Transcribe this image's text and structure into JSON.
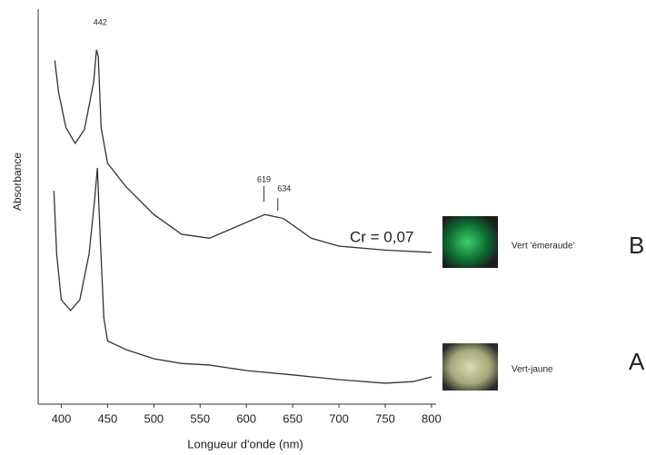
{
  "chart_data": {
    "type": "line",
    "xlabel": "Longueur d'onde (nm)",
    "ylabel": "Absorbance",
    "xlim": [
      375,
      805
    ],
    "xticks": [
      400,
      450,
      500,
      550,
      600,
      650,
      700,
      750,
      800
    ],
    "ylim": [
      0,
      100
    ],
    "peak_labels": [
      442,
      619,
      634
    ],
    "annotation": "Cr = 0,07",
    "series": [
      {
        "name": "B",
        "sample": "Vert 'émeraude'",
        "color": "#333333",
        "x": [
          393,
          397,
          405,
          415,
          425,
          435,
          438,
          440,
          443,
          450,
          470,
          500,
          530,
          560,
          590,
          620,
          640,
          670,
          700,
          750,
          800
        ],
        "values": [
          87,
          79,
          70,
          66,
          69.5,
          81.6,
          89.7,
          88,
          70,
          61,
          55,
          48,
          43,
          42,
          45,
          48,
          47,
          42,
          40,
          39,
          38.4
        ]
      },
      {
        "name": "A",
        "sample": "Vert-jaune",
        "color": "#333333",
        "x": [
          392,
          395,
          400,
          410,
          420,
          430,
          436,
          439,
          442,
          446,
          450,
          470,
          500,
          530,
          560,
          600,
          650,
          700,
          750,
          780,
          800
        ],
        "values": [
          54,
          38,
          26.4,
          23.7,
          26.4,
          38,
          51.7,
          59.8,
          42.5,
          21.8,
          16,
          13.8,
          11.5,
          10.3,
          9.9,
          8.5,
          7.4,
          6.2,
          5.3,
          5.7,
          6.9
        ]
      }
    ]
  }
}
